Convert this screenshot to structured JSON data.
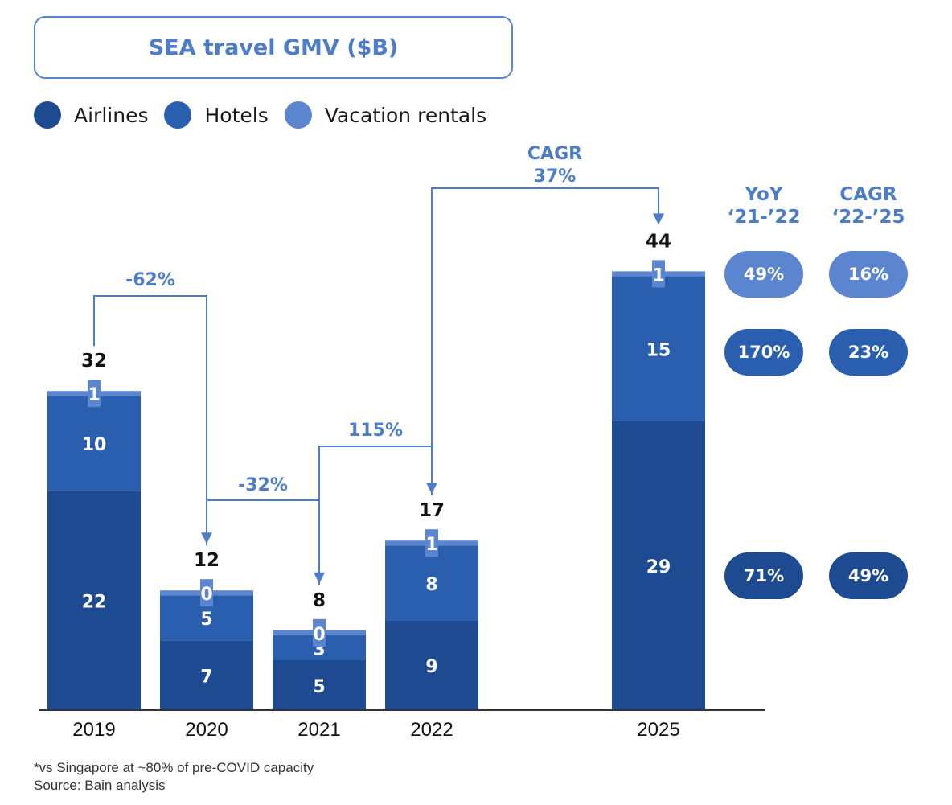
{
  "chart_data": {
    "type": "bar",
    "stacked": true,
    "title": "SEA travel GMV ($B)",
    "xlabel": "",
    "ylabel": "",
    "ylim": [
      0,
      44
    ],
    "grid": false,
    "legend_position": "top-left",
    "categories": [
      "2019",
      "2020",
      "2021",
      "2022",
      "2025"
    ],
    "series": [
      {
        "name": "Airlines",
        "color": "#1e4a91",
        "values": [
          22,
          7,
          5,
          9,
          29
        ]
      },
      {
        "name": "Hotels",
        "color": "#2a5faf",
        "values": [
          10,
          5,
          3,
          8,
          15
        ]
      },
      {
        "name": "Vacation rentals",
        "color": "#5b86cf",
        "values": [
          1,
          0,
          0,
          1,
          1
        ]
      }
    ],
    "totals": [
      32,
      12,
      8,
      17,
      44
    ],
    "annotations": [
      {
        "from": "2019",
        "to": "2020",
        "label": "-62%"
      },
      {
        "from": "2020",
        "to": "2021",
        "label": "-32%"
      },
      {
        "from": "2021",
        "to": "2022",
        "label": "115%"
      },
      {
        "from": "2022",
        "to": "2025",
        "label_line1": "CAGR",
        "label_line2": "37%"
      }
    ],
    "side_table": {
      "columns": [
        {
          "header_line1": "YoY",
          "header_line2": "‘21-’22"
        },
        {
          "header_line1": "CAGR",
          "header_line2": "‘22-’25"
        }
      ],
      "rows": [
        {
          "series": "Vacation rentals",
          "color": "#5b86cf",
          "values": [
            "49%",
            "16%"
          ]
        },
        {
          "series": "Hotels",
          "color": "#2a5faf",
          "values": [
            "170%",
            "23%"
          ]
        },
        {
          "series": "Airlines",
          "color": "#1e4a91",
          "values": [
            "71%",
            "49%"
          ]
        }
      ]
    }
  },
  "colors": {
    "accent": "#4d7cc8",
    "axis": "#333333",
    "total_label": "#111111",
    "segment_label": "#ffffff"
  },
  "footnote": {
    "line1": "*vs Singapore at ~80% of pre-COVID capacity",
    "line2": "Source: Bain analysis"
  }
}
